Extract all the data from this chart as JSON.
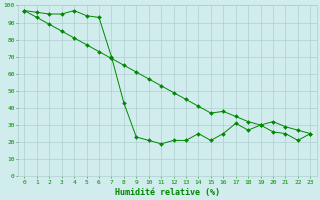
{
  "line1_x": [
    0,
    1,
    2,
    3,
    4,
    5,
    6,
    7,
    8,
    9,
    10,
    11,
    12,
    13,
    14,
    15,
    16,
    17,
    18,
    19,
    20,
    21,
    22,
    23
  ],
  "line1_y": [
    97,
    96,
    95,
    95,
    97,
    94,
    93,
    70,
    43,
    23,
    21,
    19,
    21,
    21,
    25,
    21,
    25,
    31,
    27,
    30,
    26,
    25,
    21,
    25
  ],
  "line2_x": [
    0,
    1,
    2,
    3,
    4,
    5,
    6,
    7,
    8,
    9,
    10,
    11,
    12,
    13,
    14,
    15,
    16,
    17,
    18,
    19,
    20,
    21,
    22,
    23
  ],
  "line2_y": [
    97,
    93,
    89,
    85,
    81,
    77,
    73,
    69,
    65,
    61,
    57,
    53,
    49,
    45,
    41,
    37,
    38,
    35,
    32,
    30,
    32,
    29,
    27,
    25
  ],
  "line_color": "#008800",
  "marker": "D",
  "marker_size": 2,
  "bg_color": "#d0ecec",
  "grid_color": "#b0cece",
  "xlabel": "Humidité relative (%)",
  "xlabel_color": "#008800",
  "xlabel_fontsize": 6,
  "tick_color": "#008800",
  "tick_fontsize": 4.5,
  "ylim": [
    0,
    100
  ],
  "xlim": [
    -0.5,
    23.5
  ],
  "yticks": [
    0,
    10,
    20,
    30,
    40,
    50,
    60,
    70,
    80,
    90,
    100
  ],
  "xticks": [
    0,
    1,
    2,
    3,
    4,
    5,
    6,
    7,
    8,
    9,
    10,
    11,
    12,
    13,
    14,
    15,
    16,
    17,
    18,
    19,
    20,
    21,
    22,
    23
  ]
}
